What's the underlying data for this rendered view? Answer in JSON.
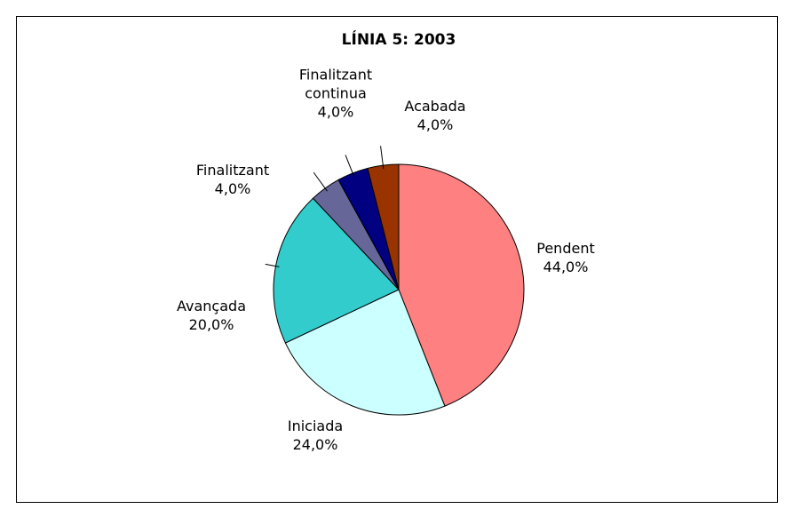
{
  "chart_data": {
    "type": "pie",
    "title": "LÍNIA 5: 2003",
    "categories": [
      "Pendent",
      "Iniciada",
      "Avançada",
      "Finalitzant",
      "Finalitzant continua",
      "Acabada"
    ],
    "values": [
      44,
      24,
      20,
      4,
      4,
      4
    ],
    "value_labels": [
      "44,0%",
      "24,0%",
      "20,0%",
      "4,0%",
      "4,0%",
      "4,0%"
    ],
    "colors": [
      "#FF8080",
      "#CCFFFF",
      "#33CCCC",
      "#666699",
      "#000080",
      "#993300"
    ]
  }
}
